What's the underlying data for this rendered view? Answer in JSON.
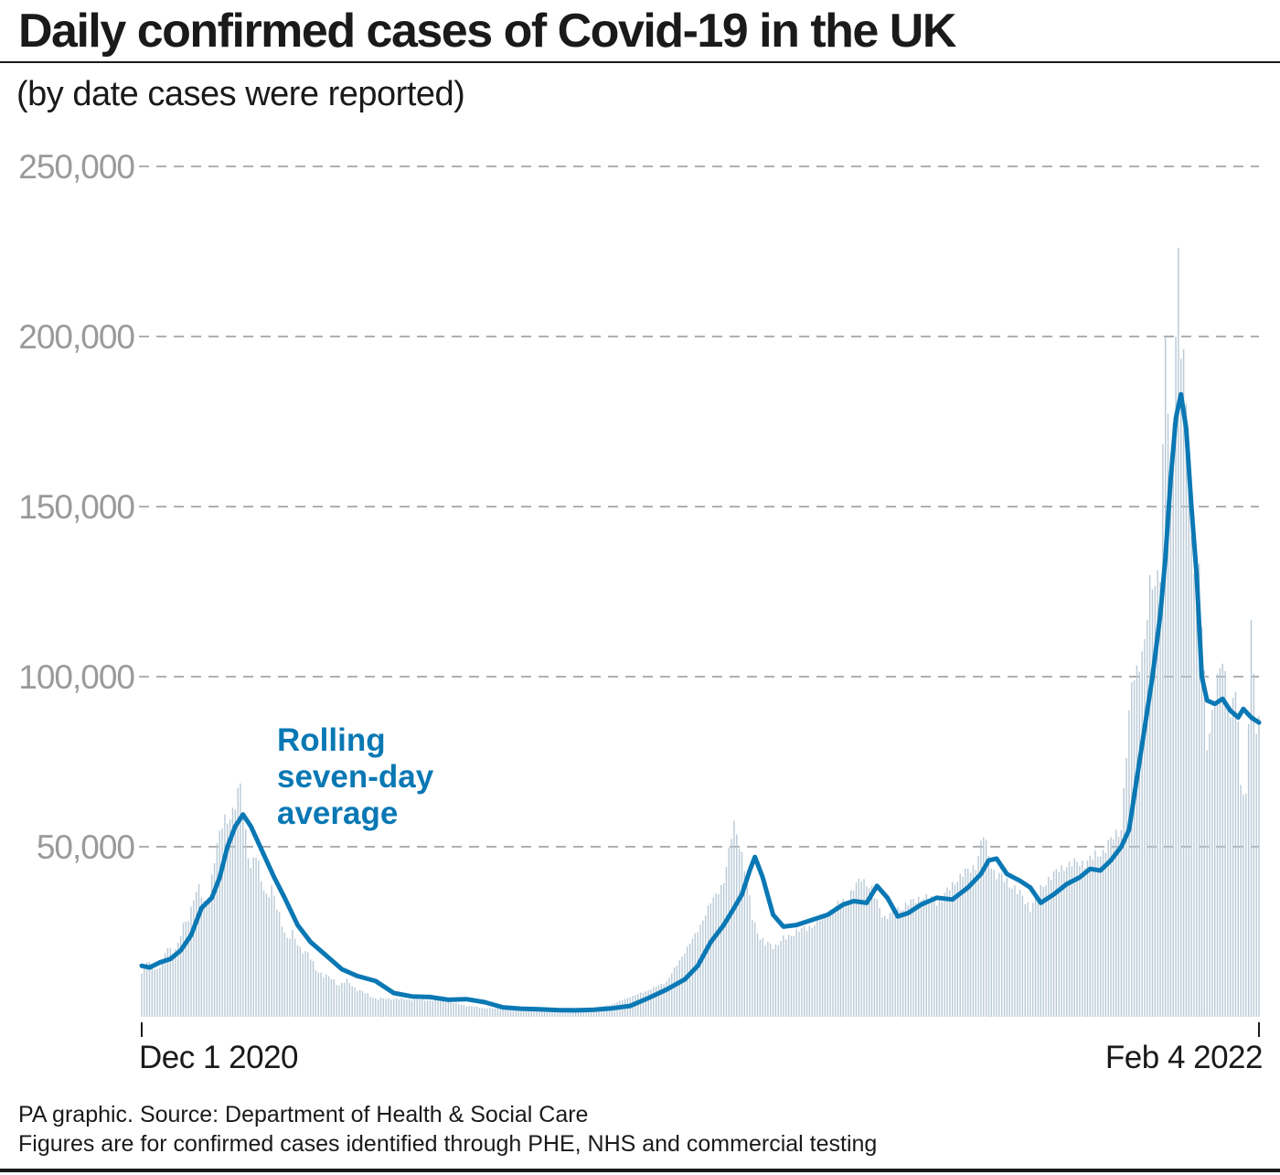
{
  "header": {
    "title": "Daily confirmed cases of Covid-19 in the UK",
    "subtitle": "(by date cases were reported)"
  },
  "footer": {
    "source": "PA graphic. Source: Department of Health & Social Care",
    "note": "Figures are for confirmed cases identified through PHE, NHS and commercial testing"
  },
  "colors": {
    "line": "#0a78b4",
    "bars": "#b8c9d6",
    "grid": "#b0b0b0",
    "tick_text": "#9a9a9a",
    "text": "#1a1a1a"
  },
  "chart_data": {
    "type": "bar",
    "title": "Daily confirmed cases of Covid-19 in the UK",
    "subtitle": "(by date cases were reported)",
    "xlabel": "",
    "ylabel": "",
    "x_start": "2020-12-01",
    "x_end": "2022-02-04",
    "x_tick_labels": [
      "Dec 1 2020",
      "Feb 4 2022"
    ],
    "ylim": [
      0,
      250000
    ],
    "y_ticks": [
      50000,
      100000,
      150000,
      200000,
      250000
    ],
    "y_tick_labels": [
      "50,000",
      "100,000",
      "150,000",
      "200,000",
      "250,000"
    ],
    "grid": "horizontal dashed",
    "series": [
      {
        "kind": "bar",
        "description": "daily confirmed cases (approximate, read from bars)",
        "points": [
          [
            "2020-12-01",
            13000
          ],
          [
            "2020-12-03",
            16000
          ],
          [
            "2020-12-05",
            15000
          ],
          [
            "2020-12-07",
            14000
          ],
          [
            "2020-12-09",
            16000
          ],
          [
            "2020-12-11",
            20000
          ],
          [
            "2020-12-13",
            19000
          ],
          [
            "2020-12-15",
            21000
          ],
          [
            "2020-12-17",
            26000
          ],
          [
            "2020-12-19",
            28000
          ],
          [
            "2020-12-21",
            34000
          ],
          [
            "2020-12-23",
            37000
          ],
          [
            "2020-12-25",
            33000
          ],
          [
            "2020-12-27",
            36000
          ],
          [
            "2020-12-29",
            45000
          ],
          [
            "2020-12-31",
            52000
          ],
          [
            "2021-01-02",
            57000
          ],
          [
            "2021-01-04",
            58000
          ],
          [
            "2021-01-06",
            61000
          ],
          [
            "2021-01-08",
            67000
          ],
          [
            "2021-01-10",
            55000
          ],
          [
            "2021-01-12",
            45000
          ],
          [
            "2021-01-14",
            48000
          ],
          [
            "2021-01-16",
            42000
          ],
          [
            "2021-01-18",
            37000
          ],
          [
            "2021-01-20",
            38000
          ],
          [
            "2021-01-22",
            33000
          ],
          [
            "2021-01-24",
            29000
          ],
          [
            "2021-01-26",
            24000
          ],
          [
            "2021-01-28",
            25000
          ],
          [
            "2021-01-31",
            21000
          ],
          [
            "2021-02-03",
            19000
          ],
          [
            "2021-02-06",
            15000
          ],
          [
            "2021-02-09",
            13000
          ],
          [
            "2021-02-12",
            12000
          ],
          [
            "2021-02-15",
            10000
          ],
          [
            "2021-02-18",
            11000
          ],
          [
            "2021-02-21",
            9000
          ],
          [
            "2021-02-25",
            7500
          ],
          [
            "2021-03-01",
            6000
          ],
          [
            "2021-03-08",
            5500
          ],
          [
            "2021-03-15",
            5200
          ],
          [
            "2021-03-22",
            5000
          ],
          [
            "2021-03-29",
            4500
          ],
          [
            "2021-04-05",
            3500
          ],
          [
            "2021-04-12",
            2800
          ],
          [
            "2021-04-19",
            2500
          ],
          [
            "2021-04-26",
            2300
          ],
          [
            "2021-05-03",
            2100
          ],
          [
            "2021-05-10",
            2200
          ],
          [
            "2021-05-17",
            2300
          ],
          [
            "2021-05-24",
            2600
          ],
          [
            "2021-05-31",
            3500
          ],
          [
            "2021-06-07",
            5500
          ],
          [
            "2021-06-14",
            7500
          ],
          [
            "2021-06-21",
            10000
          ],
          [
            "2021-06-28",
            18000
          ],
          [
            "2021-07-03",
            24000
          ],
          [
            "2021-07-08",
            32000
          ],
          [
            "2021-07-13",
            38000
          ],
          [
            "2021-07-17",
            54000
          ],
          [
            "2021-07-20",
            46000
          ],
          [
            "2021-07-24",
            32000
          ],
          [
            "2021-07-28",
            24000
          ],
          [
            "2021-08-02",
            22000
          ],
          [
            "2021-08-09",
            25000
          ],
          [
            "2021-08-16",
            27000
          ],
          [
            "2021-08-23",
            31000
          ],
          [
            "2021-08-30",
            35000
          ],
          [
            "2021-09-04",
            40000
          ],
          [
            "2021-09-08",
            37000
          ],
          [
            "2021-09-13",
            30000
          ],
          [
            "2021-09-20",
            32000
          ],
          [
            "2021-09-27",
            35000
          ],
          [
            "2021-10-04",
            34000
          ],
          [
            "2021-10-11",
            40000
          ],
          [
            "2021-10-18",
            44000
          ],
          [
            "2021-10-21",
            52000
          ],
          [
            "2021-10-25",
            43000
          ],
          [
            "2021-11-01",
            39000
          ],
          [
            "2021-11-08",
            33000
          ],
          [
            "2021-11-15",
            40000
          ],
          [
            "2021-11-22",
            44000
          ],
          [
            "2021-11-29",
            45000
          ],
          [
            "2021-12-06",
            48000
          ],
          [
            "2021-12-13",
            55000
          ],
          [
            "2021-12-17",
            93000
          ],
          [
            "2021-12-22",
            106000
          ],
          [
            "2021-12-24",
            122000
          ],
          [
            "2021-12-28",
            130000
          ],
          [
            "2021-12-30",
            189000
          ],
          [
            "2022-01-01",
            160000
          ],
          [
            "2022-01-04",
            218000
          ],
          [
            "2022-01-05",
            195000
          ],
          [
            "2022-01-07",
            179000
          ],
          [
            "2022-01-09",
            141000
          ],
          [
            "2022-01-12",
            129000
          ],
          [
            "2022-01-15",
            82000
          ],
          [
            "2022-01-18",
            94000
          ],
          [
            "2022-01-21",
            103000
          ],
          [
            "2022-01-24",
            89000
          ],
          [
            "2022-01-26",
            96000
          ],
          [
            "2022-01-28",
            71000
          ],
          [
            "2022-01-30",
            68000
          ],
          [
            "2022-02-01",
            112000
          ],
          [
            "2022-02-03",
            84000
          ],
          [
            "2022-02-04",
            85000
          ]
        ]
      },
      {
        "kind": "line",
        "name": "Rolling seven-day average",
        "points": [
          [
            "2020-12-01",
            15000
          ],
          [
            "2020-12-04",
            14500
          ],
          [
            "2020-12-08",
            16000
          ],
          [
            "2020-12-12",
            17000
          ],
          [
            "2020-12-16",
            19500
          ],
          [
            "2020-12-20",
            24000
          ],
          [
            "2020-12-24",
            32000
          ],
          [
            "2020-12-28",
            35000
          ],
          [
            "2020-12-31",
            41000
          ],
          [
            "2021-01-03",
            50000
          ],
          [
            "2021-01-06",
            56000
          ],
          [
            "2021-01-09",
            59500
          ],
          [
            "2021-01-12",
            56000
          ],
          [
            "2021-01-15",
            51000
          ],
          [
            "2021-01-18",
            46000
          ],
          [
            "2021-01-21",
            41000
          ],
          [
            "2021-01-25",
            35000
          ],
          [
            "2021-01-30",
            27000
          ],
          [
            "2021-02-04",
            22000
          ],
          [
            "2021-02-10",
            18000
          ],
          [
            "2021-02-16",
            14000
          ],
          [
            "2021-02-22",
            12000
          ],
          [
            "2021-03-01",
            10500
          ],
          [
            "2021-03-08",
            7000
          ],
          [
            "2021-03-15",
            6000
          ],
          [
            "2021-03-22",
            5800
          ],
          [
            "2021-03-29",
            5000
          ],
          [
            "2021-04-05",
            5200
          ],
          [
            "2021-04-12",
            4300
          ],
          [
            "2021-04-19",
            2800
          ],
          [
            "2021-04-26",
            2400
          ],
          [
            "2021-05-03",
            2200
          ],
          [
            "2021-05-10",
            2000
          ],
          [
            "2021-05-17",
            1900
          ],
          [
            "2021-05-24",
            2100
          ],
          [
            "2021-05-31",
            2500
          ],
          [
            "2021-06-07",
            3200
          ],
          [
            "2021-06-14",
            5500
          ],
          [
            "2021-06-21",
            8000
          ],
          [
            "2021-06-28",
            11000
          ],
          [
            "2021-07-03",
            15000
          ],
          [
            "2021-07-08",
            22000
          ],
          [
            "2021-07-13",
            27000
          ],
          [
            "2021-07-17",
            32000
          ],
          [
            "2021-07-20",
            36000
          ],
          [
            "2021-07-23",
            43000
          ],
          [
            "2021-07-25",
            47000
          ],
          [
            "2021-07-28",
            41000
          ],
          [
            "2021-08-01",
            30000
          ],
          [
            "2021-08-05",
            26500
          ],
          [
            "2021-08-10",
            27000
          ],
          [
            "2021-08-16",
            28500
          ],
          [
            "2021-08-22",
            30000
          ],
          [
            "2021-08-28",
            33000
          ],
          [
            "2021-09-01",
            34000
          ],
          [
            "2021-09-06",
            33500
          ],
          [
            "2021-09-10",
            38500
          ],
          [
            "2021-09-14",
            35000
          ],
          [
            "2021-09-18",
            29500
          ],
          [
            "2021-09-22",
            30500
          ],
          [
            "2021-09-27",
            33000
          ],
          [
            "2021-10-03",
            35000
          ],
          [
            "2021-10-09",
            34500
          ],
          [
            "2021-10-15",
            38000
          ],
          [
            "2021-10-20",
            42000
          ],
          [
            "2021-10-23",
            46000
          ],
          [
            "2021-10-26",
            46500
          ],
          [
            "2021-10-30",
            42000
          ],
          [
            "2021-11-04",
            40000
          ],
          [
            "2021-11-08",
            38000
          ],
          [
            "2021-11-12",
            33500
          ],
          [
            "2021-11-17",
            36000
          ],
          [
            "2021-11-22",
            39000
          ],
          [
            "2021-11-27",
            41000
          ],
          [
            "2021-12-01",
            43500
          ],
          [
            "2021-12-05",
            43000
          ],
          [
            "2021-12-09",
            46000
          ],
          [
            "2021-12-13",
            50000
          ],
          [
            "2021-12-16",
            55000
          ],
          [
            "2021-12-19",
            70000
          ],
          [
            "2021-12-22",
            85000
          ],
          [
            "2021-12-25",
            100000
          ],
          [
            "2021-12-28",
            118000
          ],
          [
            "2021-12-30",
            135000
          ],
          [
            "2022-01-01",
            158000
          ],
          [
            "2022-01-03",
            176000
          ],
          [
            "2022-01-05",
            183000
          ],
          [
            "2022-01-07",
            173000
          ],
          [
            "2022-01-09",
            150000
          ],
          [
            "2022-01-11",
            130000
          ],
          [
            "2022-01-13",
            100000
          ],
          [
            "2022-01-15",
            93000
          ],
          [
            "2022-01-18",
            92000
          ],
          [
            "2022-01-21",
            93500
          ],
          [
            "2022-01-24",
            90000
          ],
          [
            "2022-01-27",
            88000
          ],
          [
            "2022-01-29",
            90500
          ],
          [
            "2022-02-01",
            88000
          ],
          [
            "2022-02-04",
            86500
          ]
        ]
      }
    ],
    "annotations": [
      {
        "text": "Rolling seven-day average",
        "lines": [
          "Rolling",
          "seven-day",
          "average"
        ]
      }
    ]
  }
}
